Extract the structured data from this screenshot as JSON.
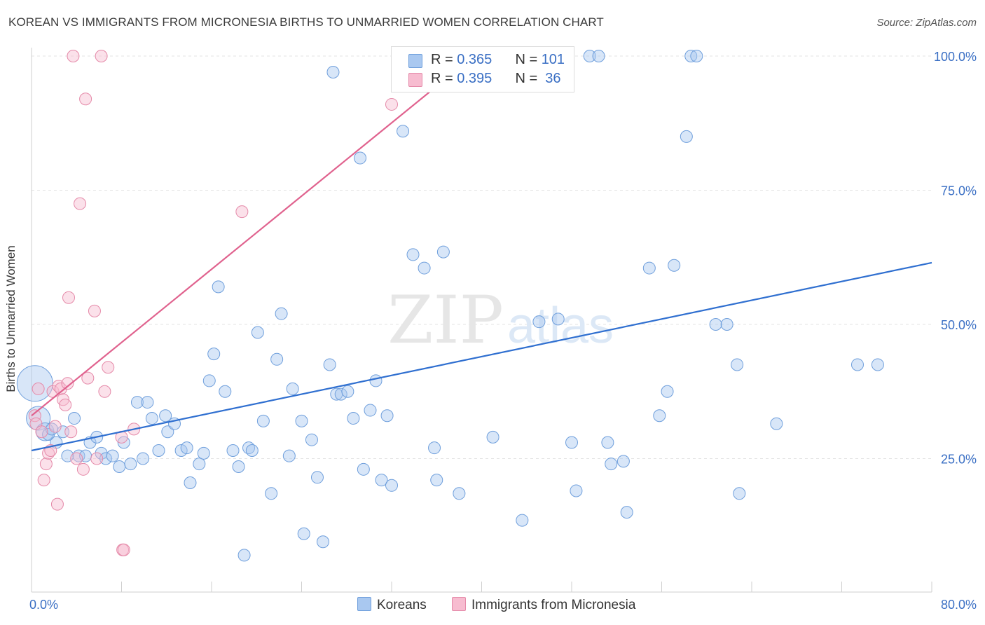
{
  "title": "KOREAN VS IMMIGRANTS FROM MICRONESIA BIRTHS TO UNMARRIED WOMEN CORRELATION CHART",
  "source": "Source: ZipAtlas.com",
  "watermark": {
    "zip": "ZIP",
    "atlas": "atlas"
  },
  "legend_box": {
    "rows": [
      {
        "r_label": "R = ",
        "r_value": "0.365",
        "n_label": "N = ",
        "n_value": "101",
        "color": "#a9c8f0"
      },
      {
        "r_label": "R = ",
        "r_value": "0.395",
        "n_label": "N = ",
        "n_value": " 36",
        "color": "#f7bcd0"
      }
    ]
  },
  "bottom_legend": [
    {
      "label": "Koreans",
      "color": "#a9c8f0"
    },
    {
      "label": "Immigrants from Micronesia",
      "color": "#f7bcd0"
    }
  ],
  "chart_data": {
    "type": "scatter",
    "title": "KOREAN VS IMMIGRANTS FROM MICRONESIA BIRTHS TO UNMARRIED WOMEN CORRELATION CHART",
    "xlabel": "",
    "ylabel": "Births to Unmarried Women",
    "xlim": [
      0,
      80
    ],
    "ylim": [
      0,
      102
    ],
    "x_tick_labels": [
      {
        "value": 0,
        "label": "0.0%"
      },
      {
        "value": 80,
        "label": "80.0%"
      }
    ],
    "y_tick_labels": [
      {
        "value": 25,
        "label": "25.0%"
      },
      {
        "value": 50,
        "label": "50.0%"
      },
      {
        "value": 75,
        "label": "75.0%"
      },
      {
        "value": 100,
        "label": "100.0%"
      }
    ],
    "grid": true,
    "legend_position": "bottom",
    "series": [
      {
        "name": "Koreans",
        "color": "#a9c8f0",
        "stroke": "#6f9fdc",
        "trend": {
          "x": [
            0,
            80
          ],
          "y": [
            26.5,
            61.5
          ],
          "color": "#2f6fd0"
        },
        "points": [
          [
            0.3,
            39,
            3
          ],
          [
            0.6,
            32.5,
            2
          ],
          [
            1.2,
            30,
            1.5
          ],
          [
            1.5,
            29.5,
            1
          ],
          [
            1.8,
            30.5,
            1
          ],
          [
            2.2,
            28,
            1
          ],
          [
            2.8,
            30,
            1
          ],
          [
            3.2,
            25.5,
            1
          ],
          [
            3.8,
            32.5,
            1
          ],
          [
            4.2,
            25.5,
            1
          ],
          [
            4.8,
            25.5,
            1
          ],
          [
            5.2,
            28,
            1
          ],
          [
            5.8,
            29,
            1
          ],
          [
            6.2,
            26,
            1
          ],
          [
            6.6,
            25,
            1
          ],
          [
            7.2,
            25.5,
            1
          ],
          [
            7.8,
            23.5,
            1
          ],
          [
            8.2,
            28,
            1
          ],
          [
            8.8,
            24,
            1
          ],
          [
            9.4,
            35.5,
            1
          ],
          [
            9.9,
            25,
            1
          ],
          [
            10.3,
            35.5,
            1
          ],
          [
            10.7,
            32.5,
            1
          ],
          [
            11.3,
            26.5,
            1
          ],
          [
            11.9,
            33,
            1
          ],
          [
            12.1,
            30,
            1
          ],
          [
            12.7,
            31.5,
            1
          ],
          [
            13.3,
            26.5,
            1
          ],
          [
            13.8,
            27,
            1
          ],
          [
            14.1,
            20.5,
            1
          ],
          [
            14.9,
            24,
            1
          ],
          [
            15.3,
            26,
            1
          ],
          [
            15.8,
            39.5,
            1
          ],
          [
            16.2,
            44.5,
            1
          ],
          [
            16.6,
            57,
            1
          ],
          [
            17.2,
            37.5,
            1
          ],
          [
            17.9,
            26.5,
            1
          ],
          [
            18.4,
            23.5,
            1
          ],
          [
            18.9,
            7,
            1
          ],
          [
            19.3,
            27,
            1
          ],
          [
            19.6,
            26.5,
            1
          ],
          [
            20.1,
            48.5,
            1
          ],
          [
            20.6,
            32,
            1
          ],
          [
            21.3,
            18.5,
            1
          ],
          [
            21.8,
            43.5,
            1
          ],
          [
            22.2,
            52,
            1
          ],
          [
            22.9,
            25.5,
            1
          ],
          [
            23.2,
            38,
            1
          ],
          [
            24.0,
            32,
            1
          ],
          [
            24.2,
            11,
            1
          ],
          [
            24.9,
            28.5,
            1
          ],
          [
            25.4,
            21.5,
            1
          ],
          [
            25.9,
            9.5,
            1
          ],
          [
            26.5,
            42.5,
            1
          ],
          [
            26.8,
            97,
            1
          ],
          [
            27.1,
            37,
            1
          ],
          [
            27.5,
            37,
            1
          ],
          [
            28.1,
            37.5,
            1
          ],
          [
            28.6,
            32.5,
            1
          ],
          [
            29.2,
            81,
            1
          ],
          [
            29.5,
            23,
            1
          ],
          [
            30.1,
            34,
            1
          ],
          [
            30.6,
            39.5,
            1
          ],
          [
            31.1,
            21,
            1
          ],
          [
            31.6,
            33,
            1
          ],
          [
            32.0,
            20,
            1
          ],
          [
            32.6,
            100,
            1
          ],
          [
            33.0,
            86,
            1
          ],
          [
            33.9,
            63,
            1
          ],
          [
            34.9,
            60.5,
            1
          ],
          [
            35.8,
            27,
            1
          ],
          [
            36.0,
            21,
            1
          ],
          [
            36.6,
            63.5,
            1
          ],
          [
            37.7,
            100,
            1
          ],
          [
            38.0,
            18.5,
            1
          ],
          [
            41.0,
            29,
            1
          ],
          [
            43.6,
            13.5,
            1
          ],
          [
            45.1,
            50.5,
            1
          ],
          [
            46.8,
            51,
            1
          ],
          [
            48.0,
            28,
            1
          ],
          [
            48.4,
            19,
            1
          ],
          [
            49.6,
            100,
            1
          ],
          [
            50.4,
            100,
            1
          ],
          [
            51.2,
            28,
            1
          ],
          [
            51.5,
            24,
            1
          ],
          [
            52.6,
            24.5,
            1
          ],
          [
            52.9,
            15,
            1
          ],
          [
            54.9,
            60.5,
            1
          ],
          [
            55.8,
            33,
            1
          ],
          [
            56.5,
            37.5,
            1
          ],
          [
            57.1,
            61,
            1
          ],
          [
            58.2,
            85,
            1
          ],
          [
            58.6,
            100,
            1
          ],
          [
            59.1,
            100,
            1
          ],
          [
            60.8,
            50,
            1
          ],
          [
            61.8,
            50,
            1
          ],
          [
            62.7,
            42.5,
            1
          ],
          [
            62.9,
            18.5,
            1
          ],
          [
            66.2,
            31.5,
            1
          ],
          [
            73.4,
            42.5,
            1
          ],
          [
            75.2,
            42.5,
            1
          ]
        ]
      },
      {
        "name": "Immigrants from Micronesia",
        "color": "#f7bcd0",
        "stroke": "#e58aa9",
        "trend": {
          "x": [
            0,
            39.3
          ],
          "y": [
            33,
            100
          ],
          "color": "#e0628e"
        },
        "points": [
          [
            0.3,
            33,
            1
          ],
          [
            0.4,
            31.5,
            1
          ],
          [
            0.6,
            38,
            1
          ],
          [
            0.9,
            30,
            1
          ],
          [
            1.1,
            21,
            1
          ],
          [
            1.3,
            24,
            1
          ],
          [
            1.5,
            26,
            1
          ],
          [
            1.7,
            26.5,
            1
          ],
          [
            1.9,
            37.5,
            1
          ],
          [
            2.1,
            31,
            1
          ],
          [
            2.3,
            16.5,
            1
          ],
          [
            2.4,
            38.5,
            1
          ],
          [
            2.6,
            38,
            1
          ],
          [
            2.8,
            36,
            1
          ],
          [
            3.0,
            35,
            1
          ],
          [
            3.2,
            39,
            1
          ],
          [
            3.5,
            30,
            1
          ],
          [
            3.3,
            55,
            1
          ],
          [
            3.7,
            100,
            1
          ],
          [
            4.0,
            25,
            1
          ],
          [
            4.3,
            72.5,
            1
          ],
          [
            4.6,
            23,
            1
          ],
          [
            4.8,
            92,
            1
          ],
          [
            5.0,
            40,
            1
          ],
          [
            5.6,
            52.5,
            1
          ],
          [
            5.8,
            25,
            1
          ],
          [
            6.2,
            100,
            1
          ],
          [
            6.5,
            37.5,
            1
          ],
          [
            6.8,
            42,
            1
          ],
          [
            8.0,
            29,
            1
          ],
          [
            8.1,
            8,
            1
          ],
          [
            8.2,
            8,
            1
          ],
          [
            9.1,
            30.5,
            1
          ],
          [
            18.7,
            71,
            1
          ],
          [
            32.0,
            91,
            1
          ],
          [
            33.5,
            98,
            1
          ]
        ]
      }
    ]
  }
}
